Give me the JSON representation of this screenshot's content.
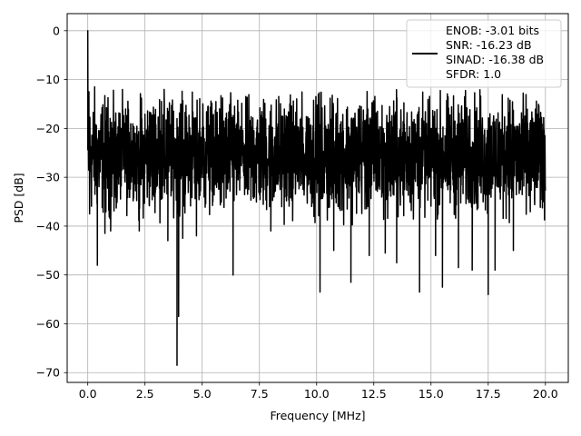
{
  "chart_data": {
    "type": "line",
    "xlabel": "Frequency [MHz]",
    "ylabel": "PSD [dB]",
    "xlim": [
      -0.9,
      21.0
    ],
    "ylim": [
      -72.0,
      3.5
    ],
    "xticks": [
      0.0,
      2.5,
      5.0,
      7.5,
      10.0,
      12.5,
      15.0,
      17.5,
      20.0
    ],
    "xtick_labels": [
      "0.0",
      "2.5",
      "5.0",
      "7.5",
      "10.0",
      "12.5",
      "15.0",
      "17.5",
      "20.0"
    ],
    "yticks": [
      0,
      -10,
      -20,
      -30,
      -40,
      -50,
      -60,
      -70
    ],
    "ytick_labels": [
      "0",
      "−10",
      "−20",
      "−30",
      "−40",
      "−50",
      "−60",
      "−70"
    ],
    "grid": true,
    "legend_position": "top-right",
    "series": [
      {
        "name": "ENOB: -3.01 bits\nSNR: -16.23 dB\nSINAD: -16.38 dB\nSFDR: 1.0",
        "legend_lines": [
          "ENOB: -3.01 bits",
          "SNR: -16.23 dB",
          "SINAD: -16.38 dB",
          "SFDR: 1.0"
        ],
        "color": "#000000",
        "x_range": [
          0.0,
          20.0
        ],
        "noise_floor_mean": -25.5,
        "noise_band": [
          -37.0,
          -12.0
        ],
        "peaks": [
          {
            "x": 0.0,
            "y": 0.0
          },
          {
            "x": 0.05,
            "y": -12.5
          },
          {
            "x": 0.3,
            "y": -11.5
          }
        ],
        "dips": [
          {
            "x": 0.08,
            "y": -37.5
          },
          {
            "x": 0.42,
            "y": -48.0
          },
          {
            "x": 0.75,
            "y": -41.5
          },
          {
            "x": 1.0,
            "y": -41.0
          },
          {
            "x": 2.25,
            "y": -41.0
          },
          {
            "x": 3.5,
            "y": -43.0
          },
          {
            "x": 3.9,
            "y": -68.5
          },
          {
            "x": 3.97,
            "y": -58.5
          },
          {
            "x": 4.15,
            "y": -42.5
          },
          {
            "x": 4.75,
            "y": -42.0
          },
          {
            "x": 6.35,
            "y": -50.0
          },
          {
            "x": 8.0,
            "y": -41.0
          },
          {
            "x": 10.15,
            "y": -53.5
          },
          {
            "x": 10.75,
            "y": -45.0
          },
          {
            "x": 11.5,
            "y": -51.5
          },
          {
            "x": 12.3,
            "y": -46.0
          },
          {
            "x": 13.0,
            "y": -45.5
          },
          {
            "x": 13.5,
            "y": -47.5
          },
          {
            "x": 14.5,
            "y": -53.5
          },
          {
            "x": 15.2,
            "y": -46.0
          },
          {
            "x": 15.5,
            "y": -52.5
          },
          {
            "x": 16.2,
            "y": -48.5
          },
          {
            "x": 16.8,
            "y": -49.0
          },
          {
            "x": 17.5,
            "y": -54.0
          },
          {
            "x": 17.8,
            "y": -49.0
          },
          {
            "x": 18.6,
            "y": -45.0
          },
          {
            "x": 19.9,
            "y": -35.0
          }
        ]
      }
    ]
  }
}
